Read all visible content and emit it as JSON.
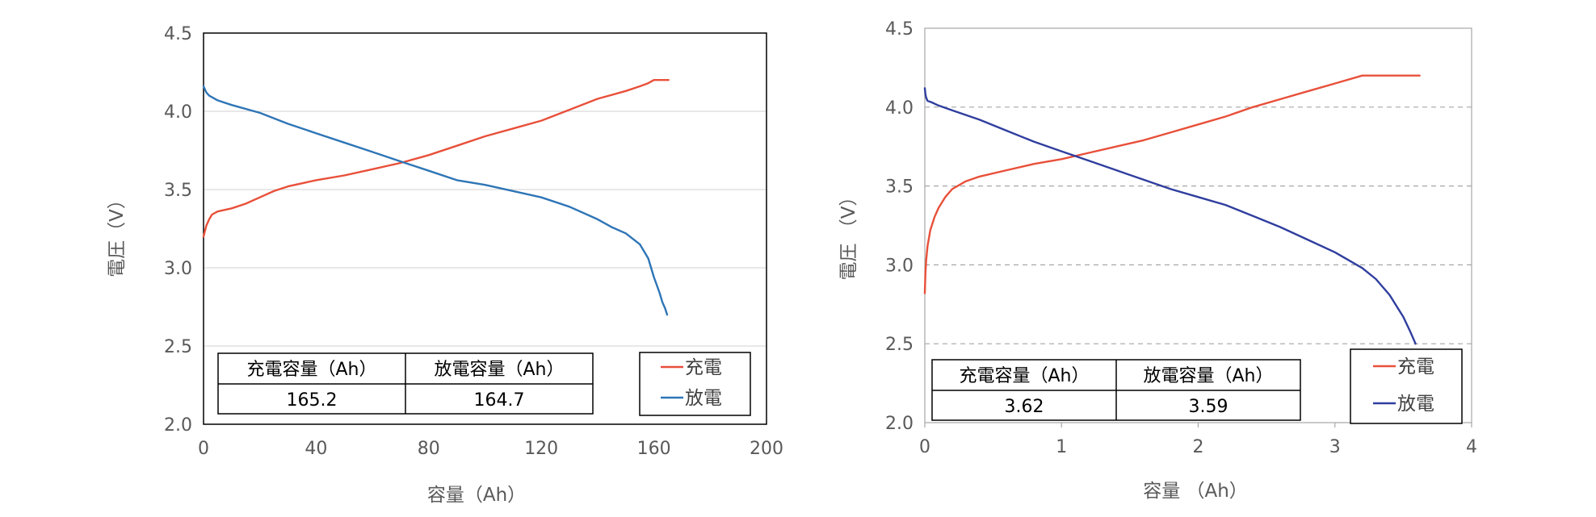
{
  "chart_data": [
    {
      "type": "line",
      "xlabel": "容量（Ah）",
      "ylabel": "電圧（V）",
      "xlim": [
        0,
        200
      ],
      "ylim": [
        2.0,
        4.5
      ],
      "x_ticks": [
        "0",
        "40",
        "80",
        "120",
        "160",
        "200"
      ],
      "y_ticks": [
        "2.0",
        "2.5",
        "3.0",
        "3.5",
        "4.0",
        "4.5"
      ],
      "grid": "horizontal-solid",
      "legend": "bottom-right",
      "series": [
        {
          "name": "充電",
          "color": "#E8503A",
          "x": [
            0,
            1,
            2,
            3,
            5,
            10,
            15,
            20,
            25,
            30,
            40,
            50,
            60,
            70,
            80,
            90,
            100,
            110,
            120,
            130,
            140,
            150,
            155,
            158,
            160,
            163,
            165.2
          ],
          "y": [
            3.2,
            3.27,
            3.31,
            3.34,
            3.36,
            3.38,
            3.41,
            3.45,
            3.49,
            3.52,
            3.56,
            3.59,
            3.63,
            3.67,
            3.72,
            3.78,
            3.84,
            3.89,
            3.94,
            4.01,
            4.08,
            4.13,
            4.16,
            4.18,
            4.2,
            4.2,
            4.2
          ]
        },
        {
          "name": "放電",
          "color": "#2E75B6",
          "x": [
            0,
            1,
            2,
            5,
            10,
            20,
            30,
            40,
            50,
            60,
            70,
            80,
            90,
            100,
            110,
            120,
            130,
            140,
            145,
            150,
            155,
            158,
            160,
            162,
            163,
            164,
            164.7
          ],
          "y": [
            4.16,
            4.12,
            4.1,
            4.07,
            4.04,
            3.99,
            3.92,
            3.86,
            3.8,
            3.74,
            3.68,
            3.62,
            3.56,
            3.53,
            3.49,
            3.45,
            3.39,
            3.31,
            3.26,
            3.22,
            3.15,
            3.06,
            2.94,
            2.84,
            2.78,
            2.74,
            2.7
          ]
        }
      ],
      "table": {
        "headers": [
          "充電容量（Ah）",
          "放電容量（Ah）"
        ],
        "values": [
          "165.2",
          "164.7"
        ]
      }
    },
    {
      "type": "line",
      "xlabel": "容量 （Ah）",
      "ylabel": "電圧 （V）",
      "xlim": [
        0,
        4
      ],
      "ylim": [
        2.0,
        4.5
      ],
      "x_ticks": [
        "0",
        "1",
        "2",
        "3",
        "4"
      ],
      "y_ticks": [
        "2.0",
        "2.5",
        "3.0",
        "3.5",
        "4.0",
        "4.5"
      ],
      "grid": "horizontal-dashed",
      "legend": "bottom-right",
      "series": [
        {
          "name": "充電",
          "color": "#E8503A",
          "x": [
            0,
            0.005,
            0.01,
            0.02,
            0.04,
            0.07,
            0.1,
            0.15,
            0.2,
            0.3,
            0.4,
            0.6,
            0.8,
            1.0,
            1.2,
            1.4,
            1.6,
            1.8,
            2.0,
            2.2,
            2.4,
            2.6,
            2.8,
            3.0,
            3.2,
            3.4,
            3.62
          ],
          "y": [
            2.82,
            2.95,
            3.03,
            3.12,
            3.22,
            3.3,
            3.36,
            3.43,
            3.48,
            3.53,
            3.56,
            3.6,
            3.64,
            3.67,
            3.71,
            3.75,
            3.79,
            3.84,
            3.89,
            3.94,
            4.0,
            4.05,
            4.1,
            4.15,
            4.2,
            4.2,
            4.2
          ]
        },
        {
          "name": "放電",
          "color": "#2F3E9E",
          "x": [
            0,
            0.005,
            0.01,
            0.02,
            0.05,
            0.1,
            0.2,
            0.4,
            0.6,
            0.8,
            1.0,
            1.2,
            1.4,
            1.6,
            1.8,
            2.0,
            2.2,
            2.4,
            2.6,
            2.8,
            3.0,
            3.2,
            3.3,
            3.4,
            3.5,
            3.55,
            3.59
          ],
          "y": [
            4.12,
            4.08,
            4.06,
            4.04,
            4.03,
            4.01,
            3.98,
            3.92,
            3.85,
            3.78,
            3.72,
            3.66,
            3.6,
            3.54,
            3.48,
            3.43,
            3.38,
            3.31,
            3.24,
            3.16,
            3.08,
            2.98,
            2.91,
            2.81,
            2.67,
            2.58,
            2.5
          ]
        }
      ],
      "table": {
        "headers": [
          "充電容量（Ah）",
          "放電容量（Ah）"
        ],
        "values": [
          "3.62",
          "3.59"
        ]
      }
    }
  ]
}
